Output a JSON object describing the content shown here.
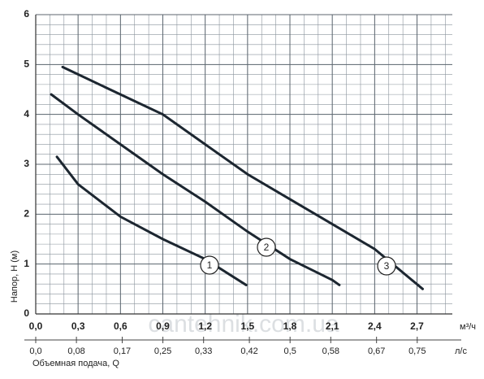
{
  "chart_data": {
    "type": "line",
    "ylabel": "Напор, H (м)",
    "xlabel_unit": "м³/ч",
    "x2label_unit": "л/с",
    "x2label": "Объемная подача, Q",
    "watermark": "cantehnik.com.ua",
    "xlim": [
      0,
      2.95
    ],
    "xticks": [
      {
        "value": 0,
        "label": "0,0"
      },
      {
        "value": 0.3,
        "label": "0,3"
      },
      {
        "value": 0.6,
        "label": "0,6"
      },
      {
        "value": 0.9,
        "label": "0,9"
      },
      {
        "value": 1.2,
        "label": "1,2"
      },
      {
        "value": 1.5,
        "label": "1,5"
      },
      {
        "value": 1.8,
        "label": "1,8"
      },
      {
        "value": 2.1,
        "label": "2,1"
      },
      {
        "value": 2.4,
        "label": "2,4"
      },
      {
        "value": 2.7,
        "label": "2,7"
      }
    ],
    "ylim": [
      0,
      6
    ],
    "yticks": [
      0,
      1,
      2,
      3,
      4,
      5,
      6
    ],
    "x2lim": [
      0,
      0.819
    ],
    "x2ticks": [
      {
        "value": 0,
        "label": "0,0"
      },
      {
        "value": 0.08,
        "label": "0,08"
      },
      {
        "value": 0.17,
        "label": "0,17"
      },
      {
        "value": 0.25,
        "label": "0,25"
      },
      {
        "value": 0.33,
        "label": "0,33"
      },
      {
        "value": 0.42,
        "label": "0,42"
      },
      {
        "value": 0.5,
        "label": "0,5"
      },
      {
        "value": 0.58,
        "label": "0,58"
      },
      {
        "value": 0.67,
        "label": "0,67"
      },
      {
        "value": 0.75,
        "label": "0,75"
      }
    ],
    "grid": true,
    "series": [
      {
        "name": "1",
        "color": "#1c2630",
        "x": [
          0.15,
          0.3,
          0.6,
          0.9,
          1.2,
          1.49
        ],
        "values": [
          3.15,
          2.6,
          1.95,
          1.5,
          1.1,
          0.58
        ]
      },
      {
        "name": "2",
        "color": "#1c2630",
        "x": [
          0.11,
          0.3,
          0.6,
          0.9,
          1.2,
          1.5,
          1.8,
          2.1,
          2.15
        ],
        "values": [
          4.4,
          4.0,
          3.4,
          2.8,
          2.25,
          1.65,
          1.1,
          0.68,
          0.58
        ]
      },
      {
        "name": "3",
        "color": "#1c2630",
        "x": [
          0.19,
          0.6,
          0.9,
          1.2,
          1.5,
          1.8,
          2.1,
          2.4,
          2.74
        ],
        "values": [
          4.95,
          4.4,
          4.0,
          3.4,
          2.8,
          2.3,
          1.8,
          1.3,
          0.5
        ]
      }
    ]
  }
}
